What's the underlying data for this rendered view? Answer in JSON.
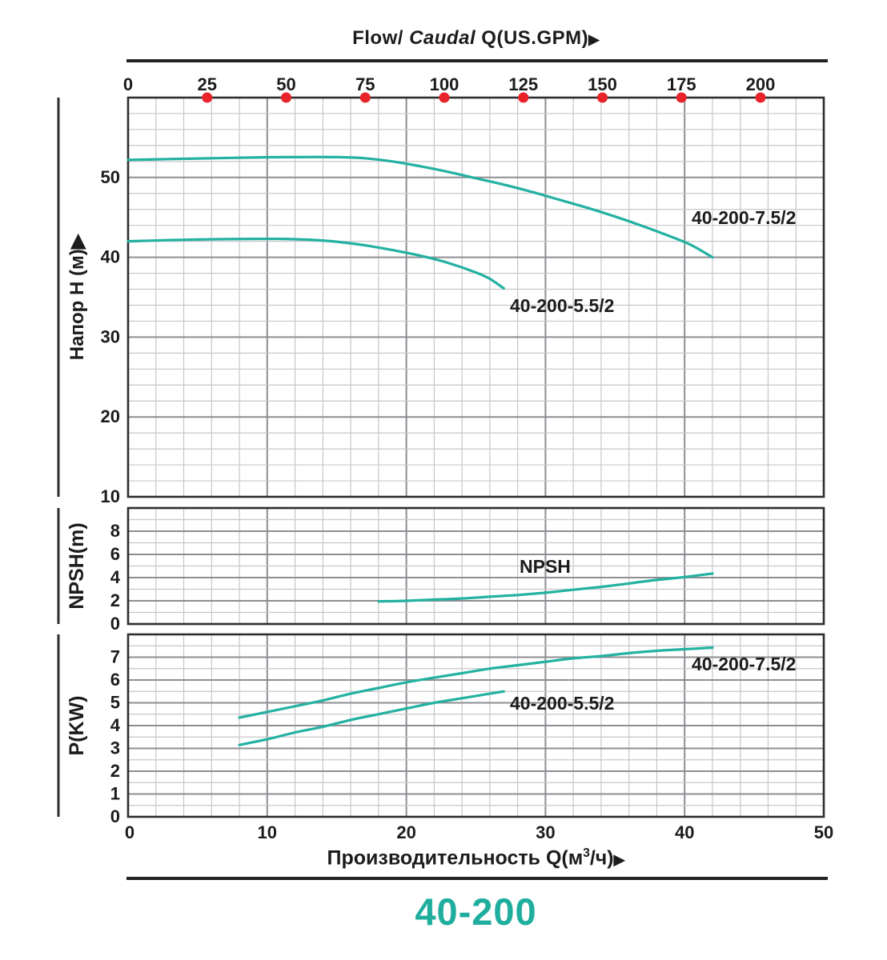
{
  "footer": {
    "model": "40-200"
  },
  "colors": {
    "curve": "#23b1a1",
    "red_dot": "#e82329",
    "text": "#1c1c1c",
    "grid_minor": "#c7c7cb",
    "grid_major": "#8d8d93",
    "frame": "#2d2d30",
    "footer_accent": "#1fae9e"
  },
  "x_axis_top": {
    "title_flow": "Flow/",
    "title_caudal": "Caudal",
    "title_unit": "Q(US.GPM)",
    "arrow": "▶",
    "ticks": [
      0,
      25,
      50,
      75,
      100,
      125,
      150,
      175,
      200
    ],
    "red_dot_ticks": [
      25,
      50,
      75,
      100,
      125,
      150,
      175,
      200
    ],
    "gpm_scale_max": 220
  },
  "x_axis_bottom": {
    "label_pre": "Производительность Q(м",
    "label_sup": "3",
    "label_post": "/ч)",
    "arrow": "▶",
    "ticks": [
      0,
      10,
      20,
      30,
      40,
      50
    ],
    "xlim": [
      0,
      50
    ],
    "minor_step": 2,
    "major_step": 10
  },
  "chart_data": [
    {
      "type": "line",
      "name": "head-curve-chart",
      "ylabel": "Напор H (м)▶",
      "ylim": [
        10,
        60
      ],
      "yticks": [
        10,
        20,
        30,
        40,
        50
      ],
      "y_minor_step": 2,
      "y_major_step": 10,
      "xlabel_unit": "м³/ч",
      "series": [
        {
          "name": "40-200-7.5/2",
          "points": [
            [
              0,
              52.2
            ],
            [
              3,
              52.3
            ],
            [
              6,
              52.4
            ],
            [
              9,
              52.5
            ],
            [
              12,
              52.55
            ],
            [
              15,
              52.55
            ],
            [
              17,
              52.4
            ],
            [
              19,
              52.0
            ],
            [
              21,
              51.4
            ],
            [
              23,
              50.7
            ],
            [
              25,
              49.9
            ],
            [
              27,
              49.1
            ],
            [
              29,
              48.2
            ],
            [
              31,
              47.2
            ],
            [
              33,
              46.2
            ],
            [
              35,
              45.1
            ],
            [
              37,
              43.9
            ],
            [
              39,
              42.6
            ],
            [
              40.5,
              41.5
            ],
            [
              42,
              40.0
            ]
          ]
        },
        {
          "name": "40-200-5.5/2",
          "points": [
            [
              0,
              42.0
            ],
            [
              3,
              42.15
            ],
            [
              6,
              42.25
            ],
            [
              9,
              42.3
            ],
            [
              11,
              42.3
            ],
            [
              13,
              42.2
            ],
            [
              15,
              41.95
            ],
            [
              17,
              41.5
            ],
            [
              19,
              40.9
            ],
            [
              21,
              40.2
            ],
            [
              23,
              39.3
            ],
            [
              25,
              38.1
            ],
            [
              26,
              37.3
            ],
            [
              27,
              36.1
            ]
          ]
        }
      ]
    },
    {
      "type": "line",
      "name": "npsh-chart",
      "ylabel": "NPSH(m)",
      "ylim": [
        0,
        10
      ],
      "yticks": [
        0,
        2,
        4,
        6,
        8
      ],
      "y_minor_step": 1,
      "y_major_step": 2,
      "series": [
        {
          "name": "NPSH",
          "points": [
            [
              18,
              1.95
            ],
            [
              20,
              2.0
            ],
            [
              22,
              2.1
            ],
            [
              24,
              2.2
            ],
            [
              26,
              2.35
            ],
            [
              28,
              2.5
            ],
            [
              30,
              2.7
            ],
            [
              32,
              2.95
            ],
            [
              34,
              3.2
            ],
            [
              36,
              3.5
            ],
            [
              38,
              3.8
            ],
            [
              40,
              4.05
            ],
            [
              42,
              4.35
            ]
          ]
        }
      ]
    },
    {
      "type": "line",
      "name": "power-chart",
      "ylabel": "P(KW)",
      "ylim": [
        0,
        8
      ],
      "yticks": [
        0,
        1,
        2,
        3,
        4,
        5,
        6,
        7
      ],
      "y_minor_step": 0.5,
      "y_major_step": 1,
      "series": [
        {
          "name": "40-200-7.5/2",
          "points": [
            [
              8,
              4.35
            ],
            [
              10,
              4.6
            ],
            [
              12,
              4.85
            ],
            [
              14,
              5.1
            ],
            [
              16,
              5.4
            ],
            [
              18,
              5.65
            ],
            [
              20,
              5.9
            ],
            [
              22,
              6.1
            ],
            [
              24,
              6.3
            ],
            [
              26,
              6.5
            ],
            [
              28,
              6.65
            ],
            [
              30,
              6.8
            ],
            [
              32,
              6.95
            ],
            [
              34,
              7.05
            ],
            [
              36,
              7.18
            ],
            [
              38,
              7.28
            ],
            [
              40,
              7.35
            ],
            [
              42,
              7.42
            ]
          ]
        },
        {
          "name": "40-200-5.5/2",
          "points": [
            [
              8,
              3.15
            ],
            [
              10,
              3.4
            ],
            [
              12,
              3.7
            ],
            [
              14,
              3.95
            ],
            [
              16,
              4.25
            ],
            [
              18,
              4.5
            ],
            [
              20,
              4.75
            ],
            [
              22,
              5.0
            ],
            [
              24,
              5.2
            ],
            [
              26,
              5.4
            ],
            [
              27,
              5.5
            ]
          ]
        }
      ]
    }
  ]
}
